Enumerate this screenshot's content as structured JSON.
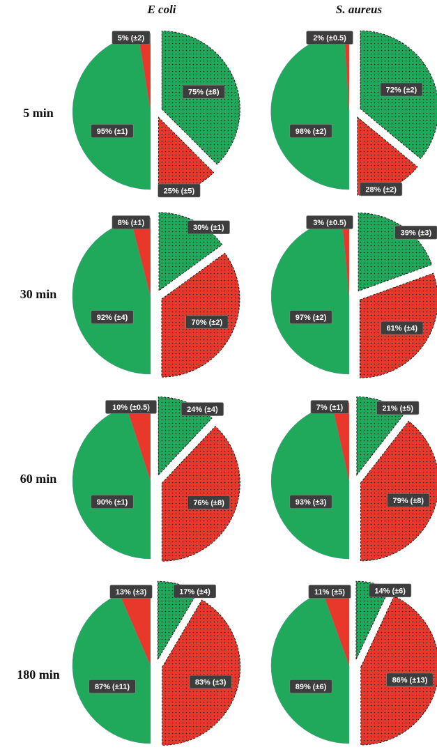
{
  "colors": {
    "green": "#21a95b",
    "red": "#e8382b",
    "label_bg": "#3d3d3d",
    "label_text": "#ffffff",
    "pattern_dot": "#1a1a1a",
    "outline_dashed": "#222222"
  },
  "column_titles": [
    "E coli",
    "S. aureus"
  ],
  "row_labels": [
    "5 min",
    "30 min",
    "60 min",
    "180 min"
  ],
  "chart_data": [
    {
      "type": "pie",
      "panel": "E coli / 5 min",
      "time": "5 min",
      "organism": "E coli",
      "left_pie": {
        "values": [
          95,
          5
        ],
        "labels": [
          "95% (±1)",
          "5% (±2)"
        ],
        "colors": [
          "green",
          "red"
        ]
      },
      "right_pie": {
        "values": [
          75,
          25
        ],
        "labels": [
          "75% (±8)",
          "25% (±5)"
        ],
        "colors": [
          "green",
          "red"
        ],
        "pattern": "dotted",
        "exploded": true
      }
    },
    {
      "type": "pie",
      "panel": "S. aureus / 5 min",
      "time": "5 min",
      "organism": "S. aureus",
      "left_pie": {
        "values": [
          98,
          2
        ],
        "labels": [
          "98% (±2)",
          "2% (±0.5)"
        ],
        "colors": [
          "green",
          "red"
        ]
      },
      "right_pie": {
        "values": [
          72,
          28
        ],
        "labels": [
          "72% (±2)",
          "28% (±2)"
        ],
        "colors": [
          "green",
          "red"
        ],
        "pattern": "dotted",
        "exploded": true
      }
    },
    {
      "type": "pie",
      "panel": "E coli / 30 min",
      "time": "30 min",
      "organism": "E coli",
      "left_pie": {
        "values": [
          92,
          8
        ],
        "labels": [
          "92% (±4)",
          "8% (±1)"
        ],
        "colors": [
          "green",
          "red"
        ]
      },
      "right_pie": {
        "values": [
          30,
          70
        ],
        "labels": [
          "30% (±1)",
          "70% (±2)"
        ],
        "colors": [
          "green",
          "red"
        ],
        "pattern": "dotted",
        "exploded": true
      }
    },
    {
      "type": "pie",
      "panel": "S. aureus / 30 min",
      "time": "30 min",
      "organism": "S. aureus",
      "left_pie": {
        "values": [
          97,
          3
        ],
        "labels": [
          "97% (±2)",
          "3% (±0.5)"
        ],
        "colors": [
          "green",
          "red"
        ]
      },
      "right_pie": {
        "values": [
          39,
          61
        ],
        "labels": [
          "39% (±3)",
          "61% (±4)"
        ],
        "colors": [
          "green",
          "red"
        ],
        "pattern": "dotted",
        "exploded": true
      }
    },
    {
      "type": "pie",
      "panel": "E coli / 60 min",
      "time": "60 min",
      "organism": "E coli",
      "left_pie": {
        "values": [
          90,
          10
        ],
        "labels": [
          "90% (±1)",
          "10% (±0.5)"
        ],
        "colors": [
          "green",
          "red"
        ]
      },
      "right_pie": {
        "values": [
          24,
          76
        ],
        "labels": [
          "24% (±4)",
          "76% (±8)"
        ],
        "colors": [
          "green",
          "red"
        ],
        "pattern": "dotted",
        "exploded": true
      }
    },
    {
      "type": "pie",
      "panel": "S. aureus / 60 min",
      "time": "60 min",
      "organism": "S. aureus",
      "left_pie": {
        "values": [
          93,
          7
        ],
        "labels": [
          "93% (±3)",
          "7% (±1)"
        ],
        "colors": [
          "green",
          "red"
        ]
      },
      "right_pie": {
        "values": [
          21,
          79
        ],
        "labels": [
          "21% (±5)",
          "79% (±8)"
        ],
        "colors": [
          "green",
          "red"
        ],
        "pattern": "dotted",
        "exploded": true
      }
    },
    {
      "type": "pie",
      "panel": "E coli / 180 min",
      "time": "180 min",
      "organism": "E coli",
      "left_pie": {
        "values": [
          87,
          13
        ],
        "labels": [
          "87% (±11)",
          "13% (±3)"
        ],
        "colors": [
          "green",
          "red"
        ]
      },
      "right_pie": {
        "values": [
          17,
          83
        ],
        "labels": [
          "17% (±4)",
          "83% (±3)"
        ],
        "colors": [
          "green",
          "red"
        ],
        "pattern": "dotted",
        "exploded": true
      }
    },
    {
      "type": "pie",
      "panel": "S. aureus / 180 min",
      "time": "180 min",
      "organism": "S. aureus",
      "left_pie": {
        "values": [
          89,
          11
        ],
        "labels": [
          "89% (±6)",
          "11% (±5)"
        ],
        "colors": [
          "green",
          "red"
        ]
      },
      "right_pie": {
        "values": [
          14,
          86
        ],
        "labels": [
          "14% (±6)",
          "86% (±13)"
        ],
        "colors": [
          "green",
          "red"
        ],
        "pattern": "dotted",
        "exploded": true
      }
    }
  ]
}
